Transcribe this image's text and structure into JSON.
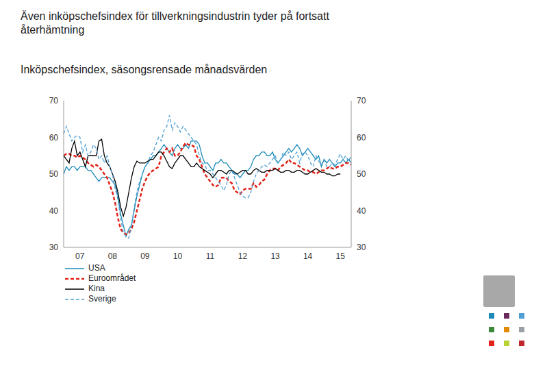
{
  "chart_data": {
    "type": "line",
    "title": "Även inköpschefsindex för tillverkningsindustrin tyder på fortsatt återhämtning",
    "subtitle": "Inköpschefsindex, säsongsrensade månadsvärden",
    "categories": [
      null,
      null,
      null,
      null,
      null,
      null,
      "07",
      null,
      null,
      null,
      null,
      null,
      null,
      null,
      null,
      null,
      null,
      null,
      "08",
      null,
      null,
      null,
      null,
      null,
      null,
      null,
      null,
      null,
      null,
      null,
      "09",
      null,
      null,
      null,
      null,
      null,
      null,
      null,
      null,
      null,
      null,
      null,
      "10",
      null,
      null,
      null,
      null,
      null,
      null,
      null,
      null,
      null,
      null,
      null,
      "11",
      null,
      null,
      null,
      null,
      null,
      null,
      null,
      null,
      null,
      null,
      null,
      "12",
      null,
      null,
      null,
      null,
      null,
      null,
      null,
      null,
      null,
      null,
      null,
      "13",
      null,
      null,
      null,
      null,
      null,
      null,
      null,
      null,
      null,
      null,
      null,
      "14",
      null,
      null,
      null,
      null,
      null,
      null,
      null,
      null,
      null,
      null,
      null,
      "15",
      null,
      null,
      null,
      null
    ],
    "series": [
      {
        "name": "USA",
        "color": "#1d8ab8",
        "line_style": "solid",
        "values": [
          50,
          52,
          51,
          52,
          52,
          51,
          52,
          52,
          52,
          51,
          51,
          50,
          49,
          48,
          49,
          49,
          49,
          49,
          48,
          47,
          44,
          39,
          36,
          33,
          35,
          36,
          40,
          44,
          47,
          50,
          52,
          53,
          54,
          55,
          55,
          56,
          57,
          58,
          57,
          56,
          55,
          57,
          58,
          57,
          57,
          58,
          57,
          59,
          59,
          59,
          58,
          55,
          53,
          53,
          52,
          51,
          53,
          53,
          54,
          53,
          53,
          52,
          51,
          50,
          50,
          49,
          50,
          51,
          51,
          52,
          54,
          55,
          55,
          56,
          56,
          55,
          55,
          56,
          54,
          53,
          54,
          55,
          56,
          57,
          56,
          57,
          58,
          57,
          55,
          56,
          57,
          56,
          55,
          54,
          55,
          52,
          54,
          53,
          54,
          53,
          52,
          53,
          53,
          54,
          53,
          54,
          53
        ]
      },
      {
        "name": "Euroområdet",
        "color": "#e2231a",
        "line_style": "dashed",
        "values": [
          55,
          55.5,
          55.5,
          55,
          55,
          54.5,
          55,
          54.5,
          54,
          53,
          52.5,
          52,
          52.5,
          52,
          51,
          50,
          49,
          47,
          45,
          42,
          38,
          35,
          34,
          33.5,
          34,
          35,
          37,
          40,
          43,
          46,
          48,
          49.5,
          50.5,
          51,
          51.5,
          52,
          55,
          56,
          57,
          56,
          57,
          55,
          55,
          56,
          57.5,
          58.5,
          58,
          58,
          57.5,
          55,
          54,
          52,
          50,
          49,
          48,
          47,
          46.5,
          47,
          49,
          49,
          49,
          48,
          47.5,
          45.5,
          45,
          44.5,
          45.5,
          46,
          46,
          46,
          47.5,
          46.5,
          47,
          48,
          48.5,
          50,
          51,
          51.5,
          51.5,
          51,
          52,
          52.5,
          53,
          54,
          53,
          53,
          52.5,
          52,
          51.5,
          51,
          51,
          50.5,
          50.5,
          50,
          50.5,
          51,
          51,
          51.5,
          52,
          51.5,
          51.5,
          52,
          52,
          52.5,
          53,
          53,
          52.5
        ]
      },
      {
        "name": "Kina",
        "color": "#000000",
        "line_style": "solid",
        "values": [
          55,
          54,
          53,
          57,
          59,
          55,
          56,
          54,
          52,
          55,
          55,
          55,
          55,
          59,
          59.5,
          55,
          53,
          52,
          50,
          48,
          45,
          41,
          38.5,
          41,
          45,
          49,
          52,
          53.5,
          53,
          53,
          53,
          53.5,
          54,
          54,
          55,
          56,
          56,
          55,
          53.5,
          52,
          51.5,
          53,
          54,
          55,
          55,
          54,
          53,
          52,
          52,
          53,
          52,
          51.5,
          51,
          50.5,
          50,
          49,
          50,
          51,
          51,
          50.5,
          50,
          51,
          51,
          50.5,
          50,
          50.5,
          51,
          51,
          50,
          50,
          51,
          51.5,
          51,
          50.5,
          50.5,
          51,
          51,
          51,
          51.5,
          51,
          50.5,
          50.5,
          51,
          51,
          50.5,
          50.5,
          51,
          51,
          50.5,
          50,
          50,
          50.5,
          51,
          51.5,
          51,
          50.5,
          50.5,
          50,
          50,
          49.5,
          49.5,
          50,
          50,
          null,
          null,
          null,
          null
        ]
      },
      {
        "name": "Sverige",
        "color": "#4f9fd4",
        "line_style": "dashed",
        "values": [
          61,
          63,
          61,
          59,
          60,
          60.5,
          60,
          56,
          58,
          55,
          56,
          58,
          57,
          54,
          55,
          53,
          55,
          52,
          50,
          46,
          43,
          38,
          34,
          33,
          32.5,
          36,
          41,
          45,
          48,
          50,
          52,
          53,
          55,
          56,
          58,
          60,
          59,
          62,
          63,
          66,
          62,
          64,
          63,
          61.5,
          63,
          62,
          61,
          60,
          59,
          58,
          55,
          53,
          52.5,
          51,
          51,
          50,
          49,
          48,
          47,
          45.5,
          47,
          50,
          51,
          49,
          47,
          45,
          44,
          43.5,
          43.5,
          45,
          48,
          50,
          51,
          52,
          52.5,
          52,
          53,
          54,
          55,
          53,
          54,
          56,
          55,
          56,
          54,
          55,
          56,
          53,
          55.5,
          56,
          55,
          53,
          52,
          55,
          53.5,
          52.5,
          54,
          52,
          52,
          53,
          52.5,
          54,
          55.5,
          54,
          55,
          53.5,
          55
        ]
      }
    ],
    "ylim": [
      30,
      70
    ],
    "yticks": [
      30,
      40,
      50,
      60,
      70
    ],
    "y2lim": [
      30,
      70
    ],
    "y2ticks": [
      30,
      40,
      50,
      60,
      70
    ],
    "grid": false,
    "legend": "lower left"
  }
}
